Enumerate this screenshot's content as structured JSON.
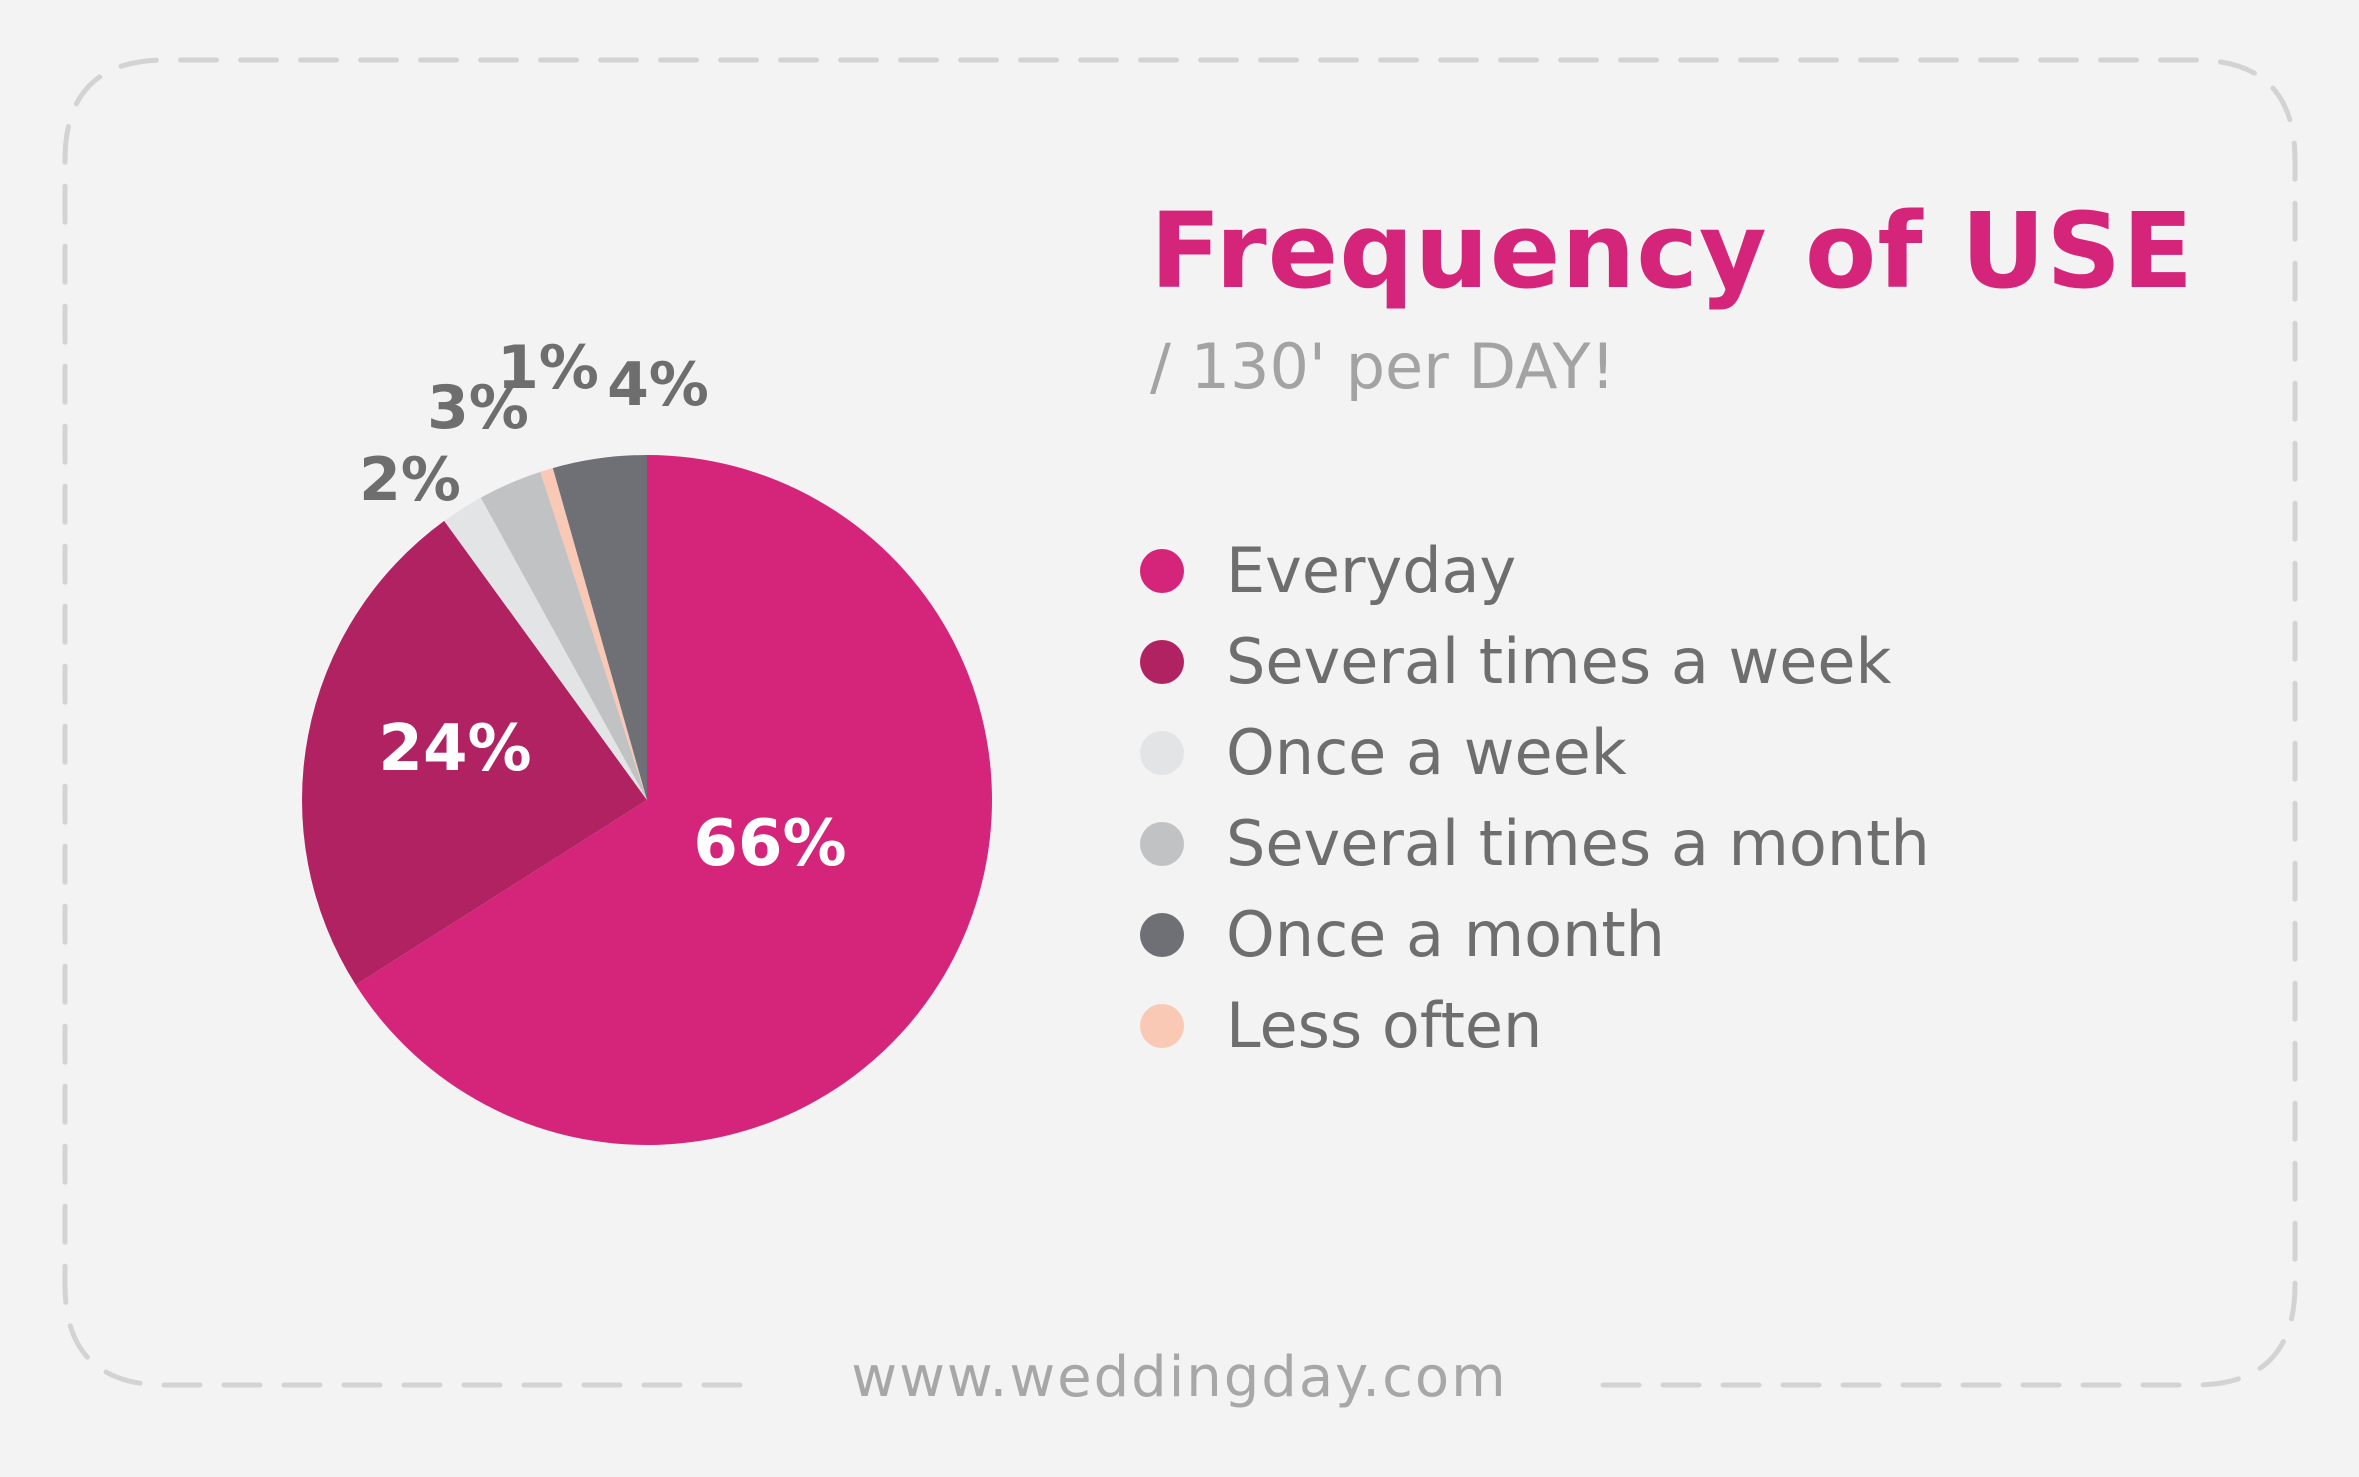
{
  "header": {
    "title": "Frequency of USE",
    "subtitle": "/ 130' per DAY!"
  },
  "footer": {
    "url": "www.weddingday.com"
  },
  "chart_data": {
    "type": "pie",
    "title": "Frequency of USE",
    "subtitle": "/ 130' per DAY!",
    "legend_position": "right",
    "slices": [
      {
        "label": "Everyday",
        "value": 66,
        "display": "66%",
        "color": "#d5257a"
      },
      {
        "label": "Several times a week",
        "value": 24,
        "display": "24%",
        "color": "#b12262"
      },
      {
        "label": "Once a week",
        "value": 2,
        "display": "2%",
        "color": "#e3e4e6"
      },
      {
        "label": "Several times a month",
        "value": 3,
        "display": "3%",
        "color": "#c1c2c4"
      },
      {
        "label": "Less often",
        "value": 0.6,
        "display": "1%",
        "color": "#f9c9b6"
      },
      {
        "label": "Once a month",
        "value": 4.4,
        "display": "4%",
        "color": "#6f7075"
      }
    ],
    "legend": [
      {
        "label": "Everyday",
        "color": "#d5257a"
      },
      {
        "label": "Several times a week",
        "color": "#b12262"
      },
      {
        "label": "Once a week",
        "color": "#e3e4e6"
      },
      {
        "label": "Several times a month",
        "color": "#c1c2c4"
      },
      {
        "label": "Once a month",
        "color": "#6f7075"
      },
      {
        "label": "Less often",
        "color": "#f9c9b6"
      }
    ]
  },
  "colors": {
    "accent": "#d5257a",
    "text": "#6e6e6e",
    "muted": "#a3a3a3",
    "background": "#f3f3f3",
    "border": "#d3d3d3"
  }
}
